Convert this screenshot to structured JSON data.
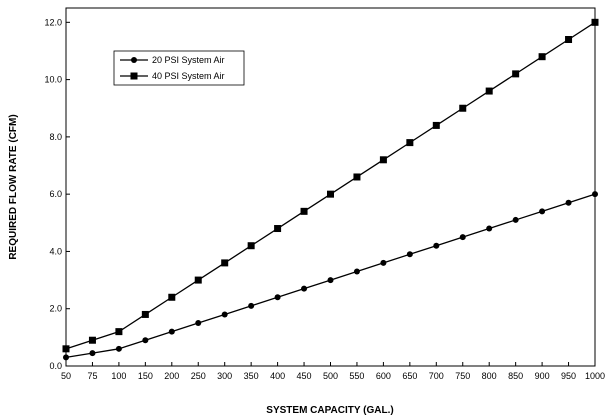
{
  "chart_data": {
    "type": "line",
    "title": "",
    "xlabel": "SYSTEM CAPACITY (GAL.)",
    "ylabel": "REQUIRED FLOW RATE (CFM)",
    "x": [
      50,
      75,
      100,
      150,
      200,
      250,
      300,
      350,
      400,
      450,
      500,
      550,
      600,
      650,
      700,
      750,
      800,
      850,
      900,
      950,
      1000
    ],
    "x_tick_labels": [
      "50",
      "75",
      "100",
      "150",
      "200",
      "250",
      "300",
      "350",
      "400",
      "450",
      "500",
      "550",
      "600",
      "650",
      "700",
      "750",
      "800",
      "850",
      "900",
      "950",
      "1000"
    ],
    "y_ticks": [
      0,
      2,
      4,
      6,
      8,
      10,
      12
    ],
    "y_tick_labels": [
      "0.0",
      "2.0",
      "4.0",
      "6.0",
      "8.0",
      "10.0",
      "12.0"
    ],
    "ylim": [
      0,
      12.5
    ],
    "grid": false,
    "legend_position": "top-left",
    "series": [
      {
        "name": "20 PSI System Air",
        "marker": "circle",
        "values": [
          0.3,
          0.45,
          0.6,
          0.9,
          1.2,
          1.5,
          1.8,
          2.1,
          2.4,
          2.7,
          3.0,
          3.3,
          3.6,
          3.9,
          4.2,
          4.5,
          4.8,
          5.1,
          5.4,
          5.7,
          6.0
        ]
      },
      {
        "name": "40 PSI System Air",
        "marker": "square",
        "values": [
          0.6,
          0.9,
          1.2,
          1.8,
          2.4,
          3.0,
          3.6,
          4.2,
          4.8,
          5.4,
          6.0,
          6.6,
          7.2,
          7.8,
          8.4,
          9.0,
          9.6,
          10.2,
          10.8,
          11.4,
          12.0
        ]
      }
    ]
  }
}
